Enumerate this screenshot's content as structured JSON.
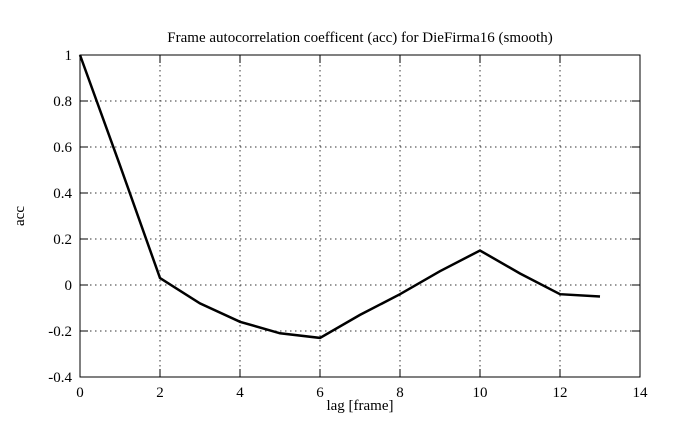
{
  "window": {
    "background": "#ffffff"
  },
  "chart_data": {
    "type": "line",
    "title": "Frame autocorrelation coefficent (acc) for DieFirma16 (smooth)",
    "xlabel": "lag [frame]",
    "ylabel": "acc",
    "series": [
      {
        "name": "acc",
        "x": [
          0,
          1,
          2,
          3,
          4,
          5,
          6,
          7,
          8,
          9,
          10,
          11,
          12,
          13
        ],
        "y": [
          1.0,
          0.52,
          0.03,
          -0.08,
          -0.16,
          -0.21,
          -0.23,
          -0.13,
          -0.04,
          0.06,
          0.15,
          0.05,
          -0.04,
          -0.05
        ]
      }
    ],
    "xlim": [
      0,
      14
    ],
    "ylim": [
      -0.4,
      1
    ],
    "xticks": [
      0,
      2,
      4,
      6,
      8,
      10,
      12,
      14
    ],
    "xtick_labels": [
      "0",
      "2",
      "4",
      "6",
      "8",
      "10",
      "12",
      "14"
    ],
    "yticks": [
      1,
      0.8,
      0.6,
      0.4,
      0.2,
      0,
      -0.2,
      -0.4
    ],
    "ytick_labels": [
      "1",
      "0.8",
      "0.6",
      "0.4",
      "0.2",
      "0",
      "-0.2",
      "-0.4"
    ],
    "grid": true,
    "grid_style": "dotted",
    "legend": "none",
    "line_color": "#000000",
    "grid_color": "#333333",
    "border_color": "#000000",
    "background": "#ffffff"
  }
}
